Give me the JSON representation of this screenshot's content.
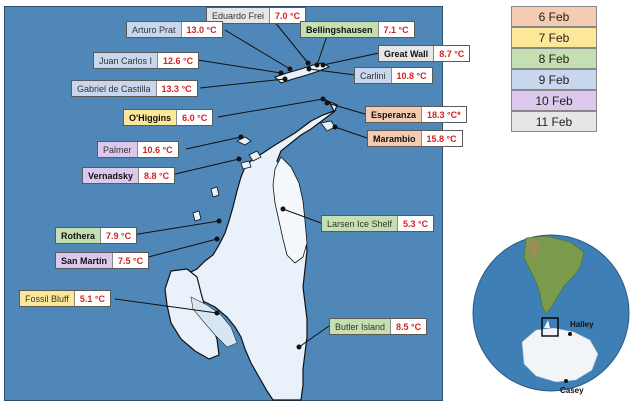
{
  "colors": {
    "6 Feb": "#f5cbb2",
    "7 Feb": "#fde89a",
    "8 Feb": "#c5dfb0",
    "9 Feb": "#c8d6ee",
    "10 Feb": "#dcc8ec",
    "11 Feb": "#e6e6e6",
    "ocean": "#4f87b8",
    "land": "#e9f2fa",
    "temperature_text": "#d32222"
  },
  "stations": [
    {
      "name": "Eduardo Frei",
      "temp": "7.0 °C",
      "date": "11 Feb",
      "bold": false
    },
    {
      "name": "Arturo Prat",
      "temp": "13.0 °C",
      "date": "9 Feb",
      "bold": false
    },
    {
      "name": "Bellingshausen",
      "temp": "7.1 °C",
      "date": "8 Feb",
      "bold": true
    },
    {
      "name": "Great Wall",
      "temp": "8.7 °C",
      "date": "11 Feb",
      "bold": true
    },
    {
      "name": "Juan Carlos I",
      "temp": "12.6 °C",
      "date": "9 Feb",
      "bold": false
    },
    {
      "name": "Carlini",
      "temp": "10.8 °C",
      "date": "9 Feb",
      "bold": false
    },
    {
      "name": "Gabriel de Castilla",
      "temp": "13.3 °C",
      "date": "9 Feb",
      "bold": false
    },
    {
      "name": "O'Higgins",
      "temp": "6.0 °C",
      "date": "7 Feb",
      "bold": true
    },
    {
      "name": "Esperanza",
      "temp": "18.3 °C*",
      "date": "6 Feb",
      "bold": true
    },
    {
      "name": "Palmer",
      "temp": "10.6 °C",
      "date": "10 Feb",
      "bold": false
    },
    {
      "name": "Marambio",
      "temp": "15.8 °C",
      "date": "6 Feb",
      "bold": true
    },
    {
      "name": "Vernadsky",
      "temp": "8.8 °C",
      "date": "10 Feb",
      "bold": true
    },
    {
      "name": "Larsen Ice Shelf",
      "temp": "5.3 °C",
      "date": "8 Feb",
      "bold": false
    },
    {
      "name": "Rothera",
      "temp": "7.9 °C",
      "date": "8 Feb",
      "bold": true
    },
    {
      "name": "San Martín",
      "temp": "7.5 °C",
      "date": "10 Feb",
      "bold": true
    },
    {
      "name": "Fossil Bluff",
      "temp": "5.1 °C",
      "date": "7 Feb",
      "bold": false
    },
    {
      "name": "Butler Island",
      "temp": "8.5 °C",
      "date": "8 Feb",
      "bold": false
    }
  ],
  "legend": [
    {
      "label": "6 Feb",
      "color": "#f5cbb2"
    },
    {
      "label": "7 Feb",
      "color": "#fde89a"
    },
    {
      "label": "8 Feb",
      "color": "#c5dfb0"
    },
    {
      "label": "9 Feb",
      "color": "#c8d6ee"
    },
    {
      "label": "10 Feb",
      "color": "#dcc8ec"
    },
    {
      "label": "11 Feb",
      "color": "#e6e6e6"
    }
  ],
  "globe": {
    "labels": [
      "Halley",
      "Casey"
    ]
  }
}
